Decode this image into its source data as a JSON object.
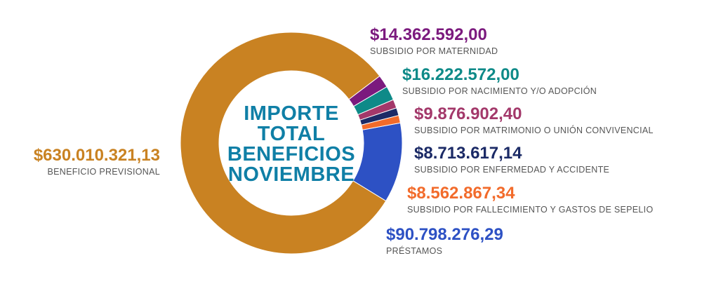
{
  "center": {
    "lines": [
      "IMPORTE",
      "TOTAL",
      "BENEFICIOS",
      "NOVIEMBRE"
    ],
    "color": "#0f7fa6"
  },
  "chart_data": {
    "type": "pie",
    "donut": true,
    "slices": [
      {
        "label": "PRÉSTAMOS",
        "value_text": "$90.798.276,29",
        "value": 90798276.29,
        "color": "#2d51c4"
      },
      {
        "label": "BENEFICIO PREVISIONAL",
        "value_text": "$630.010.321,13",
        "value": 630010321.13,
        "color": "#c98222"
      },
      {
        "label": "SUBSIDIO POR MATERNIDAD",
        "value_text": "$14.362.592,00",
        "value": 14362592.0,
        "color": "#7b1a7e"
      },
      {
        "label": "SUBSIDIO POR NACIMIENTO Y/O ADOPCIÓN",
        "value_text": "$16.222.572,00",
        "value": 16222572.0,
        "color": "#0e8a88"
      },
      {
        "label": "SUBSIDIO POR MATRIMONIO O UNIÓN CONVIVENCIAL",
        "value_text": "$9.876.902,40",
        "value": 9876902.4,
        "color": "#a3386a"
      },
      {
        "label": "SUBSIDIO POR ENFERMEDAD Y ACCIDENTE",
        "value_text": "$8.713.617,14",
        "value": 8713617.14,
        "color": "#1b2a66"
      },
      {
        "label": "SUBSIDIO POR FALLECIMIENTO Y GASTOS DE SEPELIO",
        "value_text": "$8.562.867,34",
        "value": 8562867.34,
        "color": "#f26b2b"
      }
    ]
  }
}
